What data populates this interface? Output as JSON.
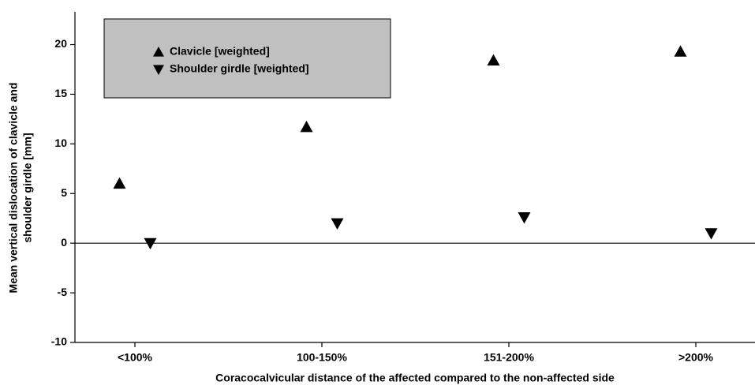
{
  "chart_data": {
    "type": "scatter",
    "xlabel": "Coracocalvicular distance of the affected compared to the non-affected side",
    "ylabel": [
      "Mean vertical dislocation of clavicle and",
      "shoulder girdle [mm]"
    ],
    "categories": [
      "<100%",
      "100-150%",
      "151-200%",
      ">200%"
    ],
    "series": [
      {
        "name": "Clavicle [weighted]",
        "color": "#000000",
        "marker": "triangle-up",
        "values": [
          6.0,
          11.7,
          18.4,
          19.3
        ]
      },
      {
        "name": "Shoulder girdle [weighted]",
        "color": "#000000",
        "marker": "triangle-down",
        "values": [
          0.0,
          2.0,
          2.6,
          1.0
        ]
      }
    ],
    "ylim": [
      -10,
      23.3
    ],
    "yticks": [
      -10,
      -5,
      0,
      5,
      10,
      15,
      20
    ],
    "axhline": 0,
    "legend": "upper left",
    "legend_color": "#c0c0c0"
  }
}
